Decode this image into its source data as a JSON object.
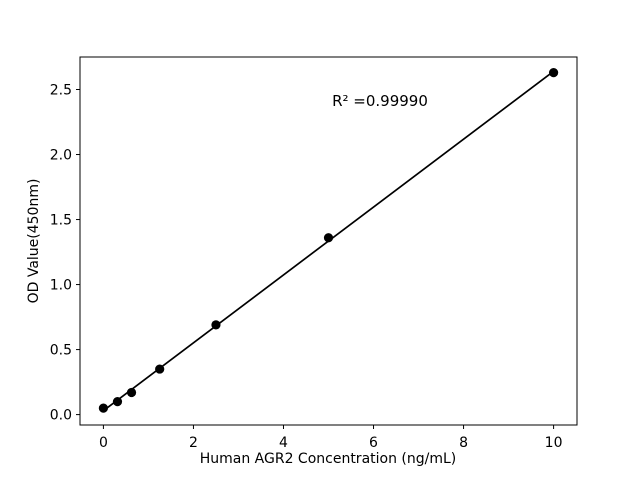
{
  "figure": {
    "background": "#ffffff",
    "foreground": "#000000"
  },
  "chart_data": {
    "type": "scatter",
    "title": "",
    "xlabel": "Human AGR2 Concentration (ng/mL)",
    "ylabel": "OD Value(450nm)",
    "xlim": [
      -0.52,
      10.52
    ],
    "ylim": [
      -0.08,
      2.75
    ],
    "x_ticks": [
      0,
      2,
      4,
      6,
      8,
      10
    ],
    "x_tick_labels": [
      "0",
      "2",
      "4",
      "6",
      "8",
      "10"
    ],
    "y_ticks": [
      0.0,
      0.5,
      1.0,
      1.5,
      2.0,
      2.5
    ],
    "y_tick_labels": [
      "0.0",
      "0.5",
      "1.0",
      "1.5",
      "2.0",
      "2.5"
    ],
    "grid": false,
    "legend": null,
    "annotation": {
      "text": "R² =0.99990"
    },
    "series": [
      {
        "name": "linear-fit",
        "type": "line",
        "color": "#000000",
        "x": [
          0,
          10
        ],
        "y": [
          0.03,
          2.64
        ]
      },
      {
        "name": "standard-points",
        "type": "scatter",
        "color": "#000000",
        "marker_radius": 4.6,
        "x": [
          0,
          0.3125,
          0.625,
          1.25,
          2.5,
          5,
          10
        ],
        "y": [
          0.05,
          0.1,
          0.17,
          0.35,
          0.69,
          1.36,
          2.63
        ]
      }
    ]
  }
}
